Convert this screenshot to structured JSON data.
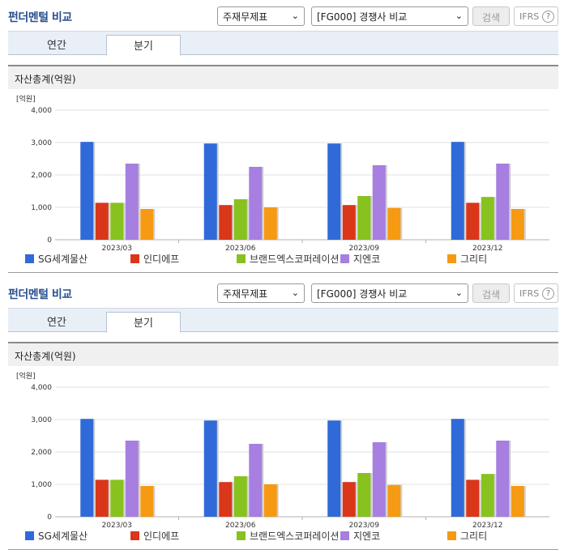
{
  "panels": [
    {
      "title": "펀더멘털 비교",
      "select_a": "주재무제표",
      "select_b": "[FG000] 경쟁사 비교",
      "search_label": "검색",
      "ifrs_label": "IFRS",
      "ifrs_help": "?",
      "tabs": [
        {
          "label": "연간"
        },
        {
          "label": "분기"
        }
      ],
      "active_tab": "분기",
      "chart_title": "자산총계(억원)"
    },
    {
      "title": "펀더멘털 비교",
      "select_a": "주재무제표",
      "select_b": "[FG000] 경쟁사 비교",
      "search_label": "검색",
      "ifrs_label": "IFRS",
      "ifrs_help": "?",
      "tabs": [
        {
          "label": "연간"
        },
        {
          "label": "분기"
        }
      ],
      "active_tab": "분기",
      "chart_title": "자산총계(억원)"
    }
  ],
  "chart_data": [
    {
      "type": "bar",
      "title": "자산총계(억원)",
      "unit_label": "[억원]",
      "categories": [
        "2023/03",
        "2023/06",
        "2023/09",
        "2023/12"
      ],
      "ylim": [
        0,
        4000
      ],
      "yticks": [
        "0",
        "1,000",
        "2,000",
        "3,000",
        "4,000"
      ],
      "grid": true,
      "legend": "bottom",
      "series": [
        {
          "name": "SG세계물산",
          "color": "#2f6ad8",
          "values": [
            3020,
            2970,
            2970,
            3020
          ]
        },
        {
          "name": "인디에프",
          "color": "#d9361a",
          "values": [
            1140,
            1070,
            1070,
            1140
          ]
        },
        {
          "name": "브랜드엑스코퍼레이션",
          "color": "#87c21f",
          "values": [
            1140,
            1250,
            1350,
            1320
          ]
        },
        {
          "name": "지엔코",
          "color": "#a67fe0",
          "values": [
            2350,
            2250,
            2300,
            2350
          ]
        },
        {
          "name": "그리티",
          "color": "#f59a12",
          "values": [
            950,
            1000,
            980,
            950
          ]
        }
      ]
    },
    {
      "type": "bar",
      "title": "자산총계(억원)",
      "unit_label": "[억원]",
      "categories": [
        "2023/03",
        "2023/06",
        "2023/09",
        "2023/12"
      ],
      "ylim": [
        0,
        4000
      ],
      "yticks": [
        "0",
        "1,000",
        "2,000",
        "3,000",
        "4,000"
      ],
      "grid": true,
      "legend": "bottom",
      "series": [
        {
          "name": "SG세계물산",
          "color": "#2f6ad8",
          "values": [
            3020,
            2970,
            2970,
            3020
          ]
        },
        {
          "name": "인디에프",
          "color": "#d9361a",
          "values": [
            1140,
            1070,
            1070,
            1140
          ]
        },
        {
          "name": "브랜드엑스코퍼레이션",
          "color": "#87c21f",
          "values": [
            1140,
            1250,
            1350,
            1320
          ]
        },
        {
          "name": "지엔코",
          "color": "#a67fe0",
          "values": [
            2350,
            2250,
            2300,
            2350
          ]
        },
        {
          "name": "그리티",
          "color": "#f59a12",
          "values": [
            950,
            1000,
            980,
            950
          ]
        }
      ]
    }
  ]
}
